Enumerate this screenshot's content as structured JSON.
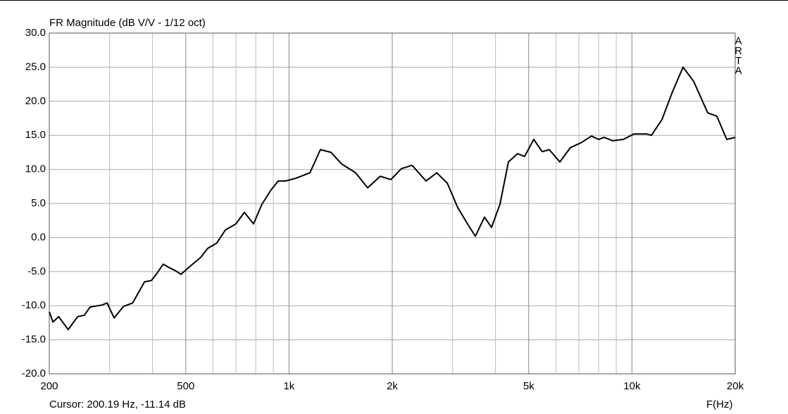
{
  "chart_data": {
    "type": "line",
    "title": "FR Magnitude (dB V/V - 1/12 oct)",
    "watermark": "ARTA",
    "cursor_text": "Cursor: 200.19 Hz, -11.14 dB",
    "xlabel": "F(Hz)",
    "xscale": "log",
    "grid": true,
    "xlim": [
      200,
      20000
    ],
    "ylim": [
      -20,
      30
    ],
    "xticks": [
      200,
      500,
      {
        "value": 1000,
        "label": "1k"
      },
      {
        "value": 2000,
        "label": "2k"
      },
      {
        "value": 5000,
        "label": "5k"
      },
      {
        "value": 10000,
        "label": "10k"
      },
      {
        "value": 20000,
        "label": "20k"
      }
    ],
    "xminor": [
      300,
      400,
      600,
      700,
      800,
      900,
      3000,
      4000,
      6000,
      7000,
      8000,
      9000
    ],
    "yticks": [
      {
        "value": 30,
        "label": "30.0"
      },
      {
        "value": 25,
        "label": "25.0"
      },
      {
        "value": 20,
        "label": "20.0"
      },
      {
        "value": 15,
        "label": "15.0"
      },
      {
        "value": 10,
        "label": "10.0"
      },
      {
        "value": 5,
        "label": "5.0"
      },
      {
        "value": 0,
        "label": "0.0"
      },
      {
        "value": -5,
        "label": "-5.0"
      },
      {
        "value": -10,
        "label": "-10.0"
      },
      {
        "value": -15,
        "label": "-15.0"
      },
      {
        "value": -20,
        "label": "-20.0"
      }
    ],
    "x": [
      200,
      205,
      213,
      227,
      242,
      253,
      263,
      285,
      295,
      309,
      329,
      350,
      379,
      397,
      410,
      430,
      447,
      468,
      484,
      515,
      553,
      579,
      616,
      652,
      700,
      741,
      788,
      834,
      887,
      930,
      975,
      1047,
      1151,
      1235,
      1326,
      1424,
      1564,
      1695,
      1846,
      1981,
      2127,
      2284,
      2510,
      2695,
      2893,
      3105,
      3334,
      3494,
      3716,
      3895,
      4123,
      4364,
      4641,
      4864,
      5171,
      5475,
      5740,
      6161,
      6615,
      7102,
      7625,
      7993,
      8302,
      8786,
      9433,
      10128,
      11028,
      11398,
      12229,
      13130,
      14096,
      15137,
      16635,
      17687,
      18893,
      20000
    ],
    "series": [
      {
        "color": "#000000",
        "values": [
          -10.9,
          -12.4,
          -11.6,
          -13.5,
          -11.6,
          -11.4,
          -10.2,
          -9.9,
          -9.6,
          -11.8,
          -10.1,
          -9.6,
          -6.5,
          -6.3,
          -5.4,
          -3.9,
          -4.4,
          -4.9,
          -5.4,
          -4.2,
          -2.9,
          -1.6,
          -0.8,
          1.1,
          2.0,
          3.7,
          2.0,
          4.9,
          7.0,
          8.3,
          8.3,
          8.7,
          9.5,
          12.9,
          12.5,
          10.8,
          9.5,
          7.3,
          9.0,
          8.5,
          10.1,
          10.6,
          8.3,
          9.5,
          8.0,
          4.4,
          1.8,
          0.2,
          3.0,
          1.5,
          4.9,
          11.1,
          12.3,
          11.9,
          14.4,
          12.6,
          12.9,
          11.1,
          13.2,
          13.9,
          14.9,
          14.4,
          14.7,
          14.2,
          14.4,
          15.2,
          15.2,
          15.0,
          17.3,
          21.4,
          25.0,
          22.9,
          18.3,
          17.8,
          14.4,
          14.7
        ]
      }
    ]
  }
}
